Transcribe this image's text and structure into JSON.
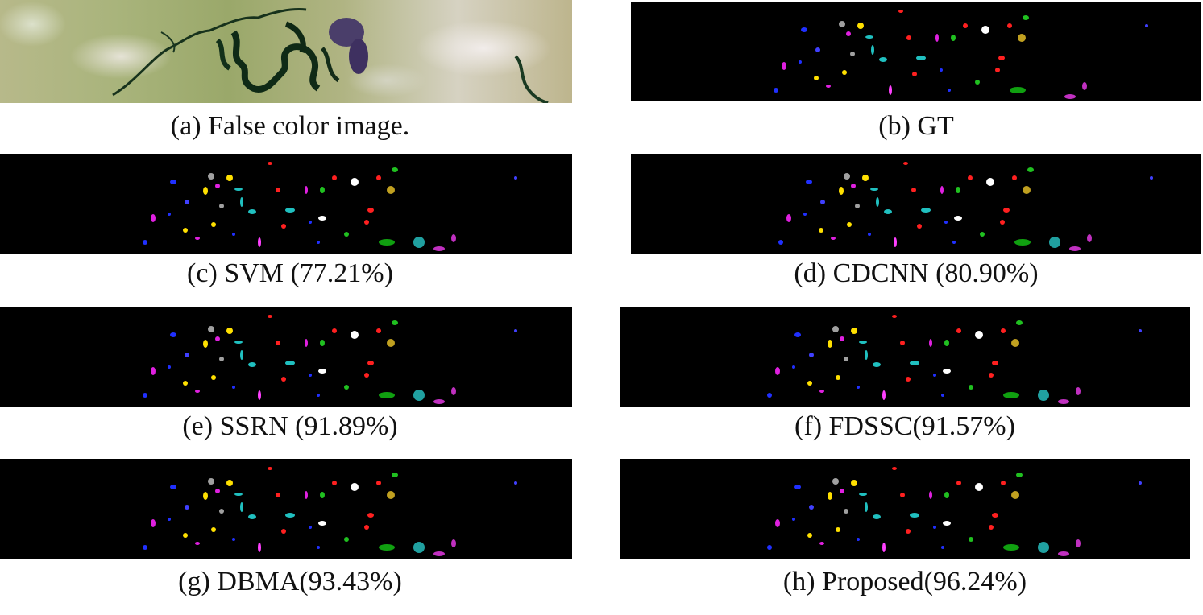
{
  "figure": {
    "panels": [
      {
        "id": "a",
        "caption": "(a) False color image.",
        "kind": "false-color"
      },
      {
        "id": "b",
        "caption": "(b) GT",
        "kind": "classification-map"
      },
      {
        "id": "c",
        "caption": "(c) SVM (77.21%)",
        "kind": "classification-map"
      },
      {
        "id": "d",
        "caption": "(d) CDCNN (80.90%)",
        "kind": "classification-map"
      },
      {
        "id": "e",
        "caption": "(e) SSRN (91.89%)",
        "kind": "classification-map"
      },
      {
        "id": "f",
        "caption": "(f) FDSSC(91.57%)",
        "kind": "classification-map"
      },
      {
        "id": "g",
        "caption": "(g) DBMA(93.43%)",
        "kind": "classification-map"
      },
      {
        "id": "h",
        "caption": "(h) Proposed(96.24%)",
        "kind": "classification-map"
      }
    ],
    "class_colors": [
      "#ff2020",
      "#2030ff",
      "#a0a0a0",
      "#ffe000",
      "#20c0c0",
      "#20c020",
      "#e020e0",
      "#c0a020",
      "#ffffff",
      "#4040ff",
      "#ff40ff",
      "#10a010",
      "#20a0a0",
      "#c030c0"
    ]
  }
}
